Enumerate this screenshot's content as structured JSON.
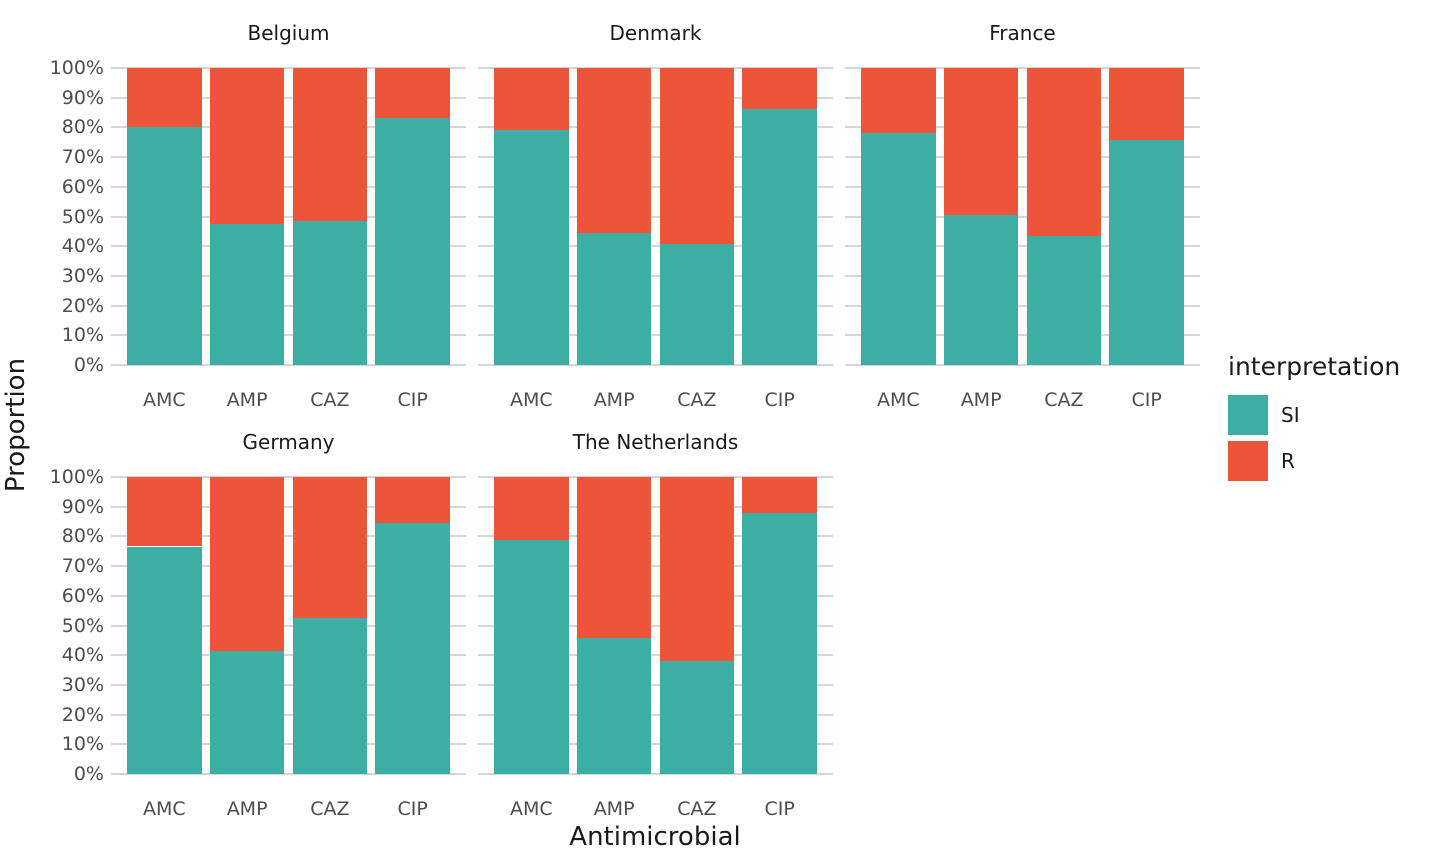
{
  "chart_data": {
    "type": "bar",
    "subtype": "stacked-percent-facets",
    "xlabel": "Antimicrobial",
    "ylabel": "Proportion",
    "legend_title": "interpretation",
    "legend_position": "right",
    "grid": true,
    "y_axis": {
      "min": 0,
      "max": 100,
      "tick_step": 10,
      "tick_labels_top_to_bottom": [
        "100%",
        "90%",
        "80%",
        "70%",
        "60%",
        "50%",
        "40%",
        "30%",
        "20%",
        "10%",
        "0%"
      ]
    },
    "categories": [
      "AMC",
      "AMP",
      "CAZ",
      "CIP"
    ],
    "series": [
      {
        "name": "SI",
        "color": "#3CAEA3"
      },
      {
        "name": "R",
        "color": "#ED553B"
      }
    ],
    "facets": [
      {
        "title": "Belgium",
        "row": 0,
        "col": 0,
        "values": {
          "SI": [
            80.0,
            47.4,
            48.6,
            83.2
          ],
          "R": [
            20.0,
            52.6,
            51.4,
            16.8
          ]
        }
      },
      {
        "title": "Denmark",
        "row": 0,
        "col": 1,
        "values": {
          "SI": [
            79.2,
            44.6,
            40.8,
            86.1
          ],
          "R": [
            20.8,
            55.4,
            59.2,
            13.9
          ]
        }
      },
      {
        "title": "France",
        "row": 0,
        "col": 2,
        "values": {
          "SI": [
            78.1,
            50.6,
            43.4,
            75.7
          ],
          "R": [
            21.9,
            49.4,
            56.6,
            24.3
          ]
        }
      },
      {
        "title": "Germany",
        "row": 1,
        "col": 0,
        "values": {
          "SI": [
            76.6,
            41.4,
            52.4,
            84.6
          ],
          "R": [
            23.4,
            58.6,
            47.6,
            15.4
          ]
        }
      },
      {
        "title": "The Netherlands",
        "row": 1,
        "col": 1,
        "values": {
          "SI": [
            78.7,
            45.8,
            38.1,
            87.9
          ],
          "R": [
            21.3,
            54.2,
            61.9,
            12.1
          ]
        }
      }
    ]
  },
  "colors": {
    "background": "#FFFFFF",
    "gridline": "#D6D6D6",
    "axis_text": "#4D4D4D",
    "title_text": "#1A1A1A"
  }
}
